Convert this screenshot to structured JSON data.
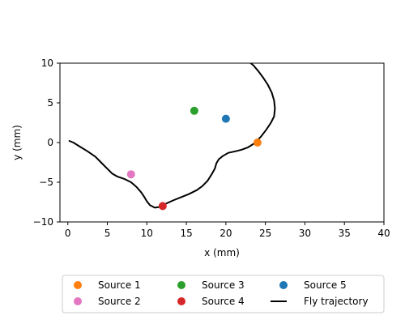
{
  "chart_data": {
    "type": "scatter",
    "title": "",
    "xlabel": "x (mm)",
    "ylabel": "y (mm)",
    "xlim": [
      -1,
      40
    ],
    "ylim": [
      -10,
      10
    ],
    "xticks": [
      0,
      5,
      10,
      15,
      20,
      25,
      30,
      35,
      40
    ],
    "yticks": [
      -10,
      -5,
      0,
      5,
      10
    ],
    "grid": false,
    "legend_placement": "below",
    "sources": [
      {
        "name": "Source 1",
        "x": 24,
        "y": 0,
        "color": "#ff7f0e"
      },
      {
        "name": "Source 2",
        "x": 8,
        "y": -4,
        "color": "#e377c2"
      },
      {
        "name": "Source 3",
        "x": 16,
        "y": 4,
        "color": "#2ca02c"
      },
      {
        "name": "Source 4",
        "x": 12,
        "y": -8,
        "color": "#d62728"
      },
      {
        "name": "Source 5",
        "x": 20,
        "y": 3,
        "color": "#1f77b4"
      }
    ],
    "legend_order": [
      "Source 1",
      "Source 2",
      "Source 3",
      "Source 4",
      "Source 5",
      "Fly trajectory"
    ],
    "trajectory": {
      "name": "Fly trajectory",
      "color": "#000000",
      "x": [
        0.2,
        0.7,
        1.5,
        2.5,
        3.5,
        4.3,
        5.0,
        5.6,
        6.3,
        7.2,
        8.0,
        8.7,
        9.3,
        9.7,
        10.0,
        10.4,
        11.0,
        11.7,
        12.4,
        13.3,
        14.3,
        15.3,
        16.3,
        17.0,
        17.7,
        18.2,
        18.6,
        18.8,
        19.1,
        19.6,
        20.3,
        21.2,
        22.0,
        22.8,
        23.6,
        24.4,
        25.1,
        25.7,
        26.1,
        26.2,
        26.1,
        25.8,
        25.3,
        24.7,
        24.1,
        23.5,
        22.9
      ],
      "y": [
        0.2,
        0.0,
        -0.5,
        -1.1,
        -1.8,
        -2.6,
        -3.3,
        -3.9,
        -4.3,
        -4.6,
        -5.0,
        -5.6,
        -6.3,
        -6.9,
        -7.4,
        -7.9,
        -8.2,
        -8.1,
        -7.7,
        -7.3,
        -6.9,
        -6.5,
        -6.0,
        -5.5,
        -4.8,
        -4.0,
        -3.3,
        -2.6,
        -2.1,
        -1.7,
        -1.3,
        -1.1,
        -0.9,
        -0.6,
        -0.1,
        0.7,
        1.6,
        2.5,
        3.3,
        4.3,
        5.3,
        6.3,
        7.3,
        8.2,
        9.0,
        9.7,
        10.2
      ]
    }
  }
}
